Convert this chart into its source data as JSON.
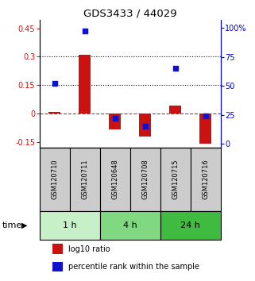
{
  "title": "GDS3433 / 44029",
  "samples": [
    "GSM120710",
    "GSM120711",
    "GSM120648",
    "GSM120708",
    "GSM120715",
    "GSM120716"
  ],
  "groups": [
    {
      "label": "1 h",
      "indices": [
        0,
        1
      ],
      "color": "#c8f0c8"
    },
    {
      "label": "4 h",
      "indices": [
        2,
        3
      ],
      "color": "#80d880"
    },
    {
      "label": "24 h",
      "indices": [
        4,
        5
      ],
      "color": "#40bb40"
    }
  ],
  "log10_ratio": [
    0.01,
    0.31,
    -0.085,
    -0.12,
    0.04,
    -0.16
  ],
  "percentile_rank_pct": [
    52,
    97,
    22,
    15,
    65,
    24
  ],
  "ylim_left": [
    -0.18,
    0.495
  ],
  "ylim_right": [
    -3.24,
    107
  ],
  "yticks_left": [
    -0.15,
    0.0,
    0.15,
    0.3,
    0.45
  ],
  "yticks_right": [
    0,
    25,
    50,
    75,
    100
  ],
  "ytick_labels_left": [
    "-0.15",
    "0",
    "0.15",
    "0.3",
    "0.45"
  ],
  "ytick_labels_right": [
    "0",
    "25",
    "50",
    "75",
    "100%"
  ],
  "hlines": [
    0.15,
    0.3
  ],
  "bar_color": "#cc1111",
  "dot_color": "#1111cc",
  "zero_line_color": "#cc2222",
  "hline_color": "#111111",
  "bar_width": 0.4,
  "dot_size": 22,
  "legend_labels": [
    "log10 ratio",
    "percentile rank within the sample"
  ],
  "xlabel_time": "time"
}
